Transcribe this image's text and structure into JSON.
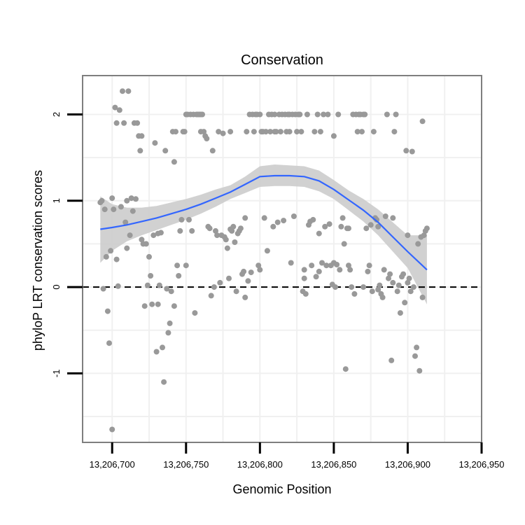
{
  "chart_data": {
    "type": "scatter",
    "title": "Conservation",
    "xlabel": "Genomic Position",
    "ylabel": "phyloP LRT conservation scores",
    "xlim": [
      13206680,
      13206950
    ],
    "ylim": [
      -1.8,
      2.45
    ],
    "x_ticks": [
      13206700,
      13206750,
      13206800,
      13206850,
      13206900,
      13206950
    ],
    "x_tick_labels": [
      "13,206,700",
      "13,206,750",
      "13,206,800",
      "13,206,850",
      "13,206,900",
      "13,206,950"
    ],
    "y_ticks": [
      -1,
      0,
      1,
      2
    ],
    "y_tick_labels": [
      "-1",
      "0",
      "1",
      "2"
    ],
    "reference_line": {
      "y": 0,
      "style": "dashed"
    },
    "colors": {
      "points": "#999999",
      "smooth": "#3366ff",
      "ribbon": "#cccccc",
      "grid": "#f0f0f0",
      "border": "#7f7f7f"
    },
    "points": [
      [
        13206692,
        0.98
      ],
      [
        13206693,
        1.0
      ],
      [
        13206694,
        -0.02
      ],
      [
        13206695,
        0.9
      ],
      [
        13206696,
        0.35
      ],
      [
        13206697,
        -0.28
      ],
      [
        13206698,
        -0.65
      ],
      [
        13206699,
        0.42
      ],
      [
        13206700,
        1.03
      ],
      [
        13206700,
        -1.65
      ],
      [
        13206701,
        0.9
      ],
      [
        13206702,
        2.08
      ],
      [
        13206703,
        0.32
      ],
      [
        13206703,
        1.9
      ],
      [
        13206704,
        0.01
      ],
      [
        13206705,
        2.05
      ],
      [
        13206706,
        0.93
      ],
      [
        13206707,
        2.27
      ],
      [
        13206708,
        1.9
      ],
      [
        13206709,
        0.75
      ],
      [
        13206710,
        1.0
      ],
      [
        13206710,
        0.45
      ],
      [
        13206711,
        2.27
      ],
      [
        13206712,
        0.6
      ],
      [
        13206713,
        1.03
      ],
      [
        13206714,
        0.88
      ],
      [
        13206715,
        1.9
      ],
      [
        13206716,
        1.02
      ],
      [
        13206717,
        1.9
      ],
      [
        13206718,
        1.75
      ],
      [
        13206719,
        1.58
      ],
      [
        13206720,
        0.55
      ],
      [
        13206720,
        1.75
      ],
      [
        13206721,
        0.5
      ],
      [
        13206722,
        -0.22
      ],
      [
        13206723,
        0.5
      ],
      [
        13206724,
        0.02
      ],
      [
        13206725,
        0.35
      ],
      [
        13206726,
        0.13
      ],
      [
        13206727,
        -0.2
      ],
      [
        13206728,
        0.6
      ],
      [
        13206729,
        1.67
      ],
      [
        13206730,
        -0.75
      ],
      [
        13206731,
        -0.2
      ],
      [
        13206731,
        0.62
      ],
      [
        13206732,
        0.02
      ],
      [
        13206733,
        0.63
      ],
      [
        13206734,
        -0.7
      ],
      [
        13206735,
        -1.1
      ],
      [
        13206736,
        1.58
      ],
      [
        13206737,
        -0.02
      ],
      [
        13206738,
        -0.53
      ],
      [
        13206739,
        -0.42
      ],
      [
        13206740,
        -0.05
      ],
      [
        13206741,
        1.8
      ],
      [
        13206742,
        1.45
      ],
      [
        13206742,
        -0.22
      ],
      [
        13206743,
        1.8
      ],
      [
        13206744,
        0.25
      ],
      [
        13206745,
        0.13
      ],
      [
        13206746,
        0.65
      ],
      [
        13206747,
        0.78
      ],
      [
        13206748,
        1.8
      ],
      [
        13206749,
        1.8
      ],
      [
        13206750,
        2.0
      ],
      [
        13206750,
        0.25
      ],
      [
        13206751,
        2.0
      ],
      [
        13206752,
        0.78
      ],
      [
        13206753,
        2.0
      ],
      [
        13206754,
        0.65
      ],
      [
        13206755,
        2.0
      ],
      [
        13206756,
        -0.3
      ],
      [
        13206757,
        2.0
      ],
      [
        13206758,
        2.0
      ],
      [
        13206759,
        2.0
      ],
      [
        13206760,
        1.8
      ],
      [
        13206760,
        2.0
      ],
      [
        13206761,
        2.0
      ],
      [
        13206762,
        1.8
      ],
      [
        13206763,
        1.75
      ],
      [
        13206764,
        1.72
      ],
      [
        13206765,
        0.7
      ],
      [
        13206766,
        0.68
      ],
      [
        13206767,
        -0.1
      ],
      [
        13206768,
        1.58
      ],
      [
        13206769,
        0.0
      ],
      [
        13206770,
        0.65
      ],
      [
        13206771,
        0.6
      ],
      [
        13206772,
        1.8
      ],
      [
        13206773,
        0.05
      ],
      [
        13206774,
        0.6
      ],
      [
        13206775,
        1.78
      ],
      [
        13206776,
        0.58
      ],
      [
        13206777,
        0.55
      ],
      [
        13206778,
        0.45
      ],
      [
        13206779,
        0.1
      ],
      [
        13206780,
        0.67
      ],
      [
        13206780,
        1.8
      ],
      [
        13206781,
        0.65
      ],
      [
        13206782,
        0.7
      ],
      [
        13206783,
        0.52
      ],
      [
        13206784,
        -0.05
      ],
      [
        13206785,
        0.62
      ],
      [
        13206786,
        0.65
      ],
      [
        13206787,
        0.68
      ],
      [
        13206788,
        0.15
      ],
      [
        13206789,
        0.18
      ],
      [
        13206790,
        0.8
      ],
      [
        13206790,
        -0.12
      ],
      [
        13206791,
        1.8
      ],
      [
        13206792,
        0.07
      ],
      [
        13206793,
        2.0
      ],
      [
        13206794,
        0.17
      ],
      [
        13206795,
        2.0
      ],
      [
        13206796,
        1.8
      ],
      [
        13206797,
        2.0
      ],
      [
        13206798,
        2.0
      ],
      [
        13206799,
        0.25
      ],
      [
        13206800,
        2.0
      ],
      [
        13206800,
        0.2
      ],
      [
        13206801,
        1.8
      ],
      [
        13206802,
        1.8
      ],
      [
        13206803,
        0.8
      ],
      [
        13206804,
        1.8
      ],
      [
        13206805,
        0.42
      ],
      [
        13206806,
        2.0
      ],
      [
        13206807,
        1.8
      ],
      [
        13206808,
        2.0
      ],
      [
        13206809,
        0.7
      ],
      [
        13206810,
        2.0
      ],
      [
        13206810,
        1.8
      ],
      [
        13206811,
        1.8
      ],
      [
        13206812,
        0.75
      ],
      [
        13206813,
        2.0
      ],
      [
        13206814,
        1.8
      ],
      [
        13206815,
        2.0
      ],
      [
        13206816,
        0.77
      ],
      [
        13206817,
        2.0
      ],
      [
        13206818,
        1.8
      ],
      [
        13206819,
        2.0
      ],
      [
        13206820,
        2.0
      ],
      [
        13206820,
        1.8
      ],
      [
        13206821,
        0.28
      ],
      [
        13206822,
        2.0
      ],
      [
        13206823,
        0.82
      ],
      [
        13206824,
        2.0
      ],
      [
        13206825,
        1.8
      ],
      [
        13206826,
        2.0
      ],
      [
        13206827,
        2.0
      ],
      [
        13206828,
        1.8
      ],
      [
        13206829,
        -0.05
      ],
      [
        13206830,
        0.1
      ],
      [
        13206830,
        0.2
      ],
      [
        13206831,
        -0.08
      ],
      [
        13206832,
        2.0
      ],
      [
        13206833,
        0.72
      ],
      [
        13206834,
        0.76
      ],
      [
        13206835,
        0.25
      ],
      [
        13206836,
        0.78
      ],
      [
        13206837,
        1.8
      ],
      [
        13206838,
        0.12
      ],
      [
        13206839,
        2.0
      ],
      [
        13206840,
        0.62
      ],
      [
        13206840,
        0.18
      ],
      [
        13206841,
        1.8
      ],
      [
        13206842,
        0.28
      ],
      [
        13206843,
        2.0
      ],
      [
        13206844,
        0.7
      ],
      [
        13206845,
        0.25
      ],
      [
        13206846,
        2.0
      ],
      [
        13206847,
        0.73
      ],
      [
        13206848,
        0.25
      ],
      [
        13206849,
        0.03
      ],
      [
        13206850,
        1.75
      ],
      [
        13206850,
        0.28
      ],
      [
        13206851,
        0.0
      ],
      [
        13206852,
        0.26
      ],
      [
        13206853,
        2.0
      ],
      [
        13206854,
        0.2
      ],
      [
        13206855,
        0.7
      ],
      [
        13206856,
        0.8
      ],
      [
        13206857,
        0.5
      ],
      [
        13206858,
        -0.95
      ],
      [
        13206859,
        0.68
      ],
      [
        13206860,
        0.25
      ],
      [
        13206860,
        0.68
      ],
      [
        13206861,
        0.2
      ],
      [
        13206862,
        0.0
      ],
      [
        13206863,
        2.0
      ],
      [
        13206864,
        -0.08
      ],
      [
        13206865,
        2.0
      ],
      [
        13206866,
        1.8
      ],
      [
        13206867,
        2.0
      ],
      [
        13206868,
        2.0
      ],
      [
        13206869,
        1.8
      ],
      [
        13206870,
        2.0
      ],
      [
        13206870,
        0.0
      ],
      [
        13206871,
        2.0
      ],
      [
        13206872,
        0.68
      ],
      [
        13206873,
        0.18
      ],
      [
        13206874,
        0.25
      ],
      [
        13206875,
        0.72
      ],
      [
        13206876,
        -0.05
      ],
      [
        13206877,
        1.8
      ],
      [
        13206878,
        0.8
      ],
      [
        13206879,
        0.78
      ],
      [
        13206880,
        -0.03
      ],
      [
        13206880,
        0.7
      ],
      [
        13206881,
        0.02
      ],
      [
        13206882,
        -0.08
      ],
      [
        13206883,
        -0.12
      ],
      [
        13206884,
        0.2
      ],
      [
        13206885,
        0.82
      ],
      [
        13206886,
        2.0
      ],
      [
        13206887,
        0.1
      ],
      [
        13206888,
        0.15
      ],
      [
        13206889,
        -0.85
      ],
      [
        13206890,
        0.8
      ],
      [
        13206890,
        0.05
      ],
      [
        13206891,
        1.8
      ],
      [
        13206892,
        2.0
      ],
      [
        13206893,
        -0.05
      ],
      [
        13206894,
        0.02
      ],
      [
        13206895,
        -0.3
      ],
      [
        13206896,
        0.12
      ],
      [
        13206897,
        0.15
      ],
      [
        13206898,
        -0.18
      ],
      [
        13206899,
        1.58
      ],
      [
        13206900,
        0.6
      ],
      [
        13206900,
        0.05
      ],
      [
        13206901,
        0.1
      ],
      [
        13206902,
        -0.05
      ],
      [
        13206903,
        1.57
      ],
      [
        13206904,
        0.0
      ],
      [
        13206905,
        -0.8
      ],
      [
        13206906,
        -0.7
      ],
      [
        13206907,
        0.5
      ],
      [
        13206908,
        -0.97
      ],
      [
        13206909,
        0.58
      ],
      [
        13206910,
        1.92
      ],
      [
        13206910,
        -0.12
      ],
      [
        13206911,
        0.6
      ],
      [
        13206912,
        0.65
      ],
      [
        13206913,
        0.68
      ]
    ],
    "smooth": {
      "x": [
        13206692,
        13206700,
        13206710,
        13206720,
        13206730,
        13206740,
        13206750,
        13206760,
        13206770,
        13206780,
        13206790,
        13206800,
        13206810,
        13206820,
        13206830,
        13206840,
        13206850,
        13206860,
        13206870,
        13206880,
        13206890,
        13206900,
        13206913
      ],
      "y": [
        0.67,
        0.69,
        0.72,
        0.76,
        0.8,
        0.85,
        0.9,
        0.96,
        1.03,
        1.1,
        1.19,
        1.28,
        1.29,
        1.29,
        1.28,
        1.23,
        1.13,
        1.01,
        0.89,
        0.75,
        0.58,
        0.41,
        0.2
      ],
      "lower": [
        0.28,
        0.42,
        0.53,
        0.6,
        0.66,
        0.72,
        0.78,
        0.85,
        0.93,
        1.02,
        1.09,
        1.16,
        1.17,
        1.17,
        1.16,
        1.11,
        1.02,
        0.89,
        0.76,
        0.6,
        0.41,
        0.22,
        -0.2
      ],
      "upper": [
        1.05,
        0.96,
        0.92,
        0.92,
        0.94,
        0.98,
        1.02,
        1.07,
        1.13,
        1.18,
        1.28,
        1.4,
        1.42,
        1.41,
        1.4,
        1.35,
        1.24,
        1.12,
        1.02,
        0.9,
        0.75,
        0.6,
        0.6
      ]
    }
  }
}
